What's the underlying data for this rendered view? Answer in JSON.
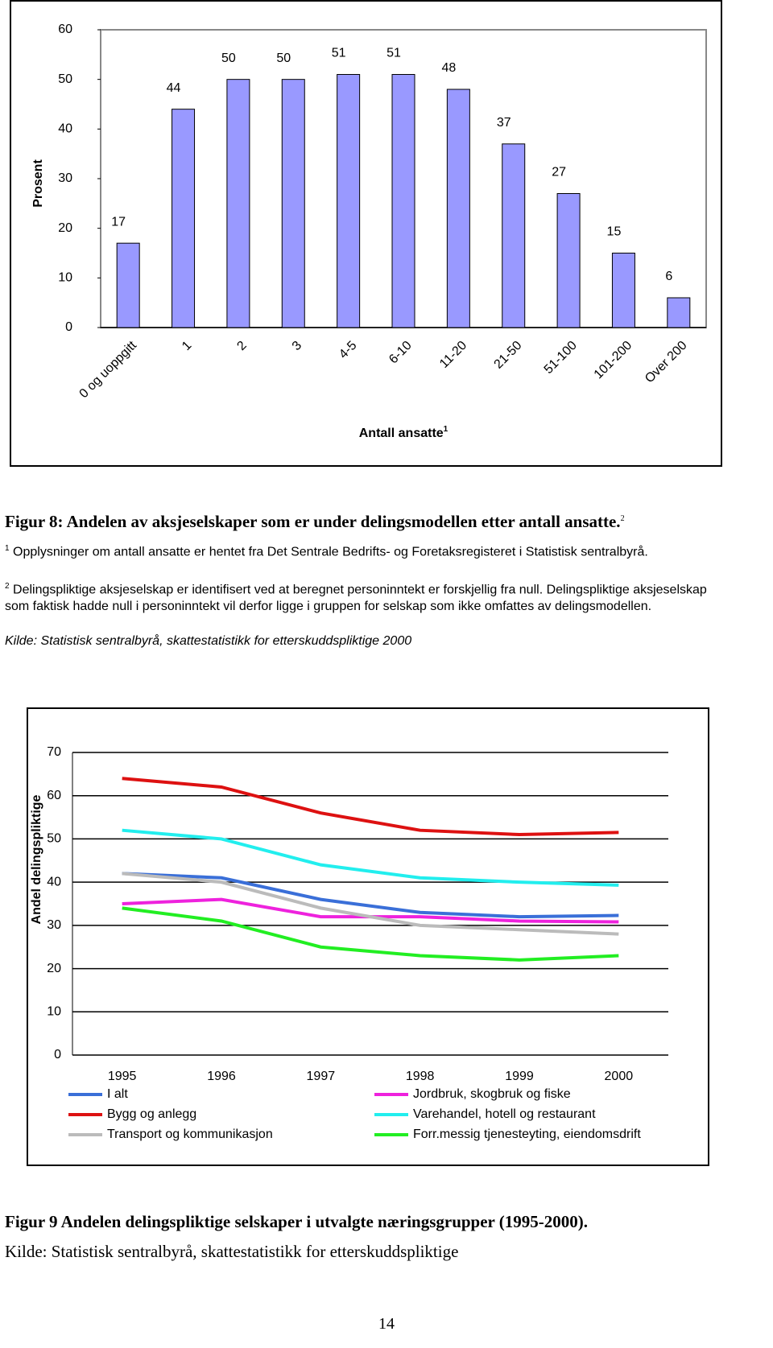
{
  "chart_data": [
    {
      "type": "bar",
      "ylabel": "Prosent",
      "xlabel": "Antall ansatte",
      "xlabel_sup": "1",
      "categories": [
        "0 og uoppgitt",
        "1",
        "2",
        "3",
        "4-5",
        "6-10",
        "11-20",
        "21-50",
        "51-100",
        "101-200",
        "Over 200"
      ],
      "values": [
        17,
        44,
        50,
        50,
        51,
        51,
        48,
        37,
        27,
        15,
        6
      ],
      "color": "#9999ff",
      "ylim": [
        0,
        60
      ],
      "yticks": [
        0,
        10,
        20,
        30,
        40,
        50,
        60
      ]
    },
    {
      "type": "line",
      "ylabel": "Andel delingspliktige",
      "x": [
        1995,
        1996,
        1997,
        1998,
        1999,
        2000
      ],
      "xlim": [
        1994.5,
        2000.5
      ],
      "xticks": [
        1995,
        1996,
        1997,
        1998,
        1999,
        2000
      ],
      "ylim": [
        0,
        70
      ],
      "yticks": [
        0,
        10,
        20,
        30,
        40,
        50,
        60,
        70
      ],
      "grid": true,
      "series": [
        {
          "name": "I alt",
          "color": "#3a6fd8",
          "values": [
            42,
            41,
            36,
            33,
            32,
            32.3
          ]
        },
        {
          "name": "Jordbruk, skogbruk og fiske",
          "color": "#ee22dd",
          "values": [
            35,
            36,
            32,
            32,
            31,
            30.8
          ]
        },
        {
          "name": "Bygg og anlegg",
          "color": "#dd1111",
          "values": [
            64,
            62,
            56,
            52,
            51,
            51.5
          ]
        },
        {
          "name": "Varehandel, hotell og restaurant",
          "color": "#22eeee",
          "values": [
            52,
            50,
            44,
            41,
            40,
            39.3
          ]
        },
        {
          "name": "Transport og kommunikasjon",
          "color": "#bbbbbb",
          "values": [
            42,
            40,
            34,
            30,
            29,
            28
          ]
        },
        {
          "name": "Forr.messig tjenesteyting, eiendomsdrift",
          "color": "#22ee22",
          "values": [
            34,
            31,
            25,
            23,
            22,
            23
          ]
        }
      ]
    }
  ],
  "figure_8": {
    "caption": "Figur 8: Andelen av aksjeselskaper som er under delingsmodellen etter antall ansatte.",
    "caption_sup": "2"
  },
  "notes": [
    {
      "marker": "1",
      "text": "Opplysninger om antall ansatte er hentet fra Det Sentrale Bedrifts- og Foretaksregisteret i Statistisk sentralbyrå."
    },
    {
      "marker": "2",
      "text": "Delingspliktige aksjeselskap er identifisert ved at beregnet personinntekt er forskjellig fra null. Delingspliktige aksjeselskap som faktisk hadde null i personinntekt vil derfor ligge i gruppen for selskap som ikke omfattes av delingsmodellen."
    }
  ],
  "source_8": "Kilde: Statistisk sentralbyrå, skattestatistikk for etterskuddspliktige 2000",
  "figure_9": {
    "caption": "Figur 9 Andelen delingspliktige selskaper i utvalgte næringsgrupper (1995-2000).",
    "source": "Kilde: Statistisk sentralbyrå, skattestatistikk for etterskuddspliktige"
  },
  "page_number": "14"
}
